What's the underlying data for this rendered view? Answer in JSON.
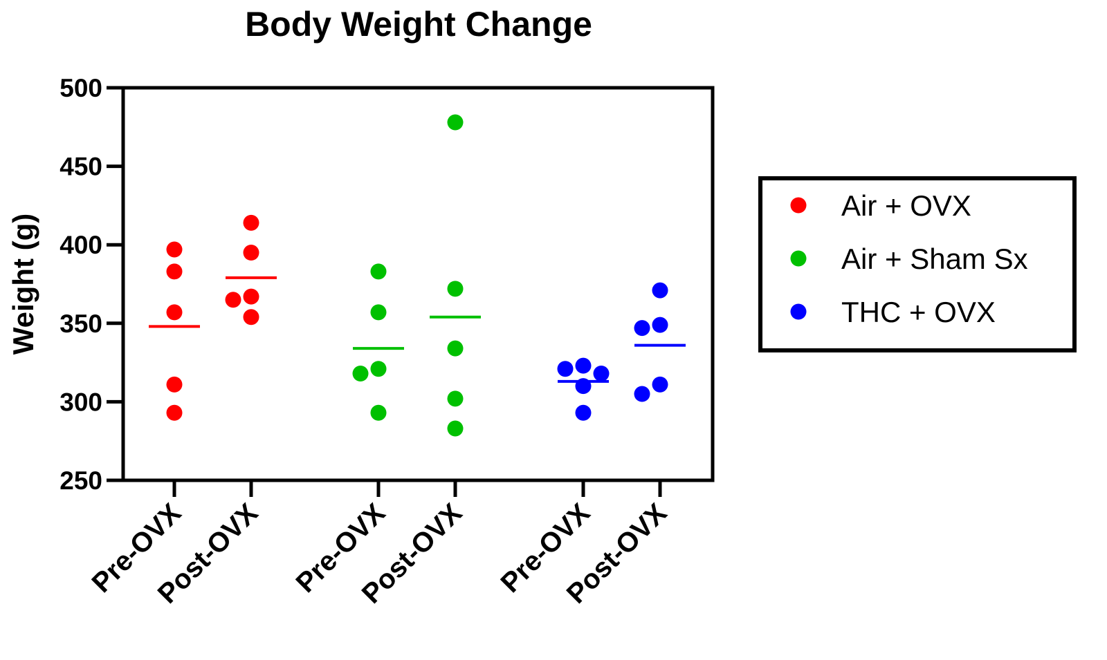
{
  "chart_data": {
    "type": "scatter",
    "title": "Body Weight Change",
    "ylabel": "Weight (g)",
    "xlabel": "",
    "ylim": [
      250,
      500
    ],
    "yticks": [
      250,
      300,
      350,
      400,
      450,
      500
    ],
    "grid": false,
    "legend_placement": "right",
    "categories": [
      "Pre-OVX",
      "Post-OVX",
      "Pre-OVX",
      "Post-OVX",
      "Pre-OVX",
      "Post-OVX"
    ],
    "series": [
      {
        "name": "Air + OVX",
        "color": "#ff0000",
        "groups": [
          {
            "category_index": 0,
            "values": [
              397,
              383,
              357,
              311,
              293
            ],
            "mean": 348
          },
          {
            "category_index": 1,
            "values": [
              414,
              395,
              367,
              365,
              354
            ],
            "mean": 379
          }
        ]
      },
      {
        "name": "Air + Sham Sx",
        "color": "#00c000",
        "groups": [
          {
            "category_index": 2,
            "values": [
              383,
              357,
              321,
              318,
              293
            ],
            "mean": 334
          },
          {
            "category_index": 3,
            "values": [
              478,
              372,
              334,
              302,
              283
            ],
            "mean": 354
          }
        ]
      },
      {
        "name": "THC + OVX",
        "color": "#0000ff",
        "groups": [
          {
            "category_index": 4,
            "values": [
              323,
              321,
              318,
              310,
              293
            ],
            "mean": 313
          },
          {
            "category_index": 5,
            "values": [
              371,
              349,
              347,
              311,
              305
            ],
            "mean": 336
          }
        ]
      }
    ]
  }
}
